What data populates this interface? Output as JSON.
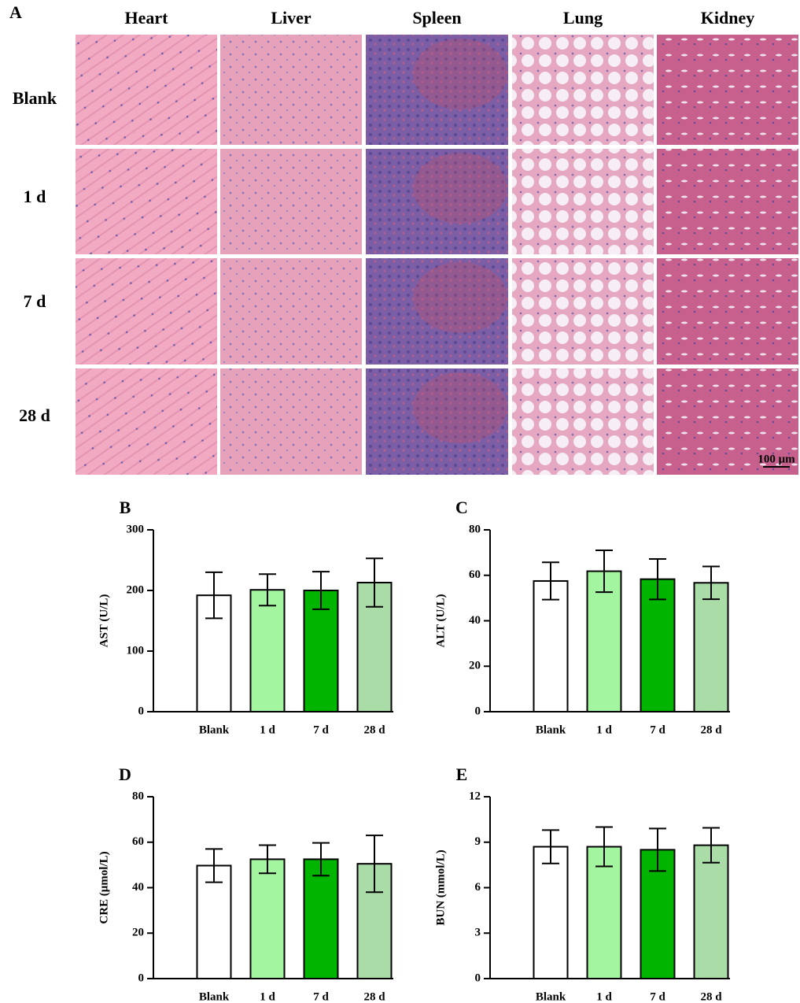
{
  "panel_a": {
    "label": "A",
    "columns": [
      "Heart",
      "Liver",
      "Spleen",
      "Lung",
      "Kidney"
    ],
    "rows": [
      "Blank",
      "1 d",
      "7 d",
      "28 d"
    ],
    "scale_bar": "100 μm"
  },
  "chart_data": [
    {
      "type": "bar",
      "label": "B",
      "ylabel": "AST (U/L)",
      "categories": [
        "Blank",
        "1 d",
        "7 d",
        "28 d"
      ],
      "values": [
        192,
        201,
        200,
        213
      ],
      "errors": [
        38,
        26,
        31,
        40
      ],
      "colors": [
        "#ffffff",
        "#a3f5a0",
        "#00b400",
        "#aadca8"
      ],
      "ylim": [
        0,
        300
      ],
      "yticks": [
        0,
        100,
        200,
        300
      ]
    },
    {
      "type": "bar",
      "label": "C",
      "ylabel": "ALT (U/L)",
      "categories": [
        "Blank",
        "1 d",
        "7 d",
        "28 d"
      ],
      "values": [
        57.5,
        61.8,
        58.3,
        56.7
      ],
      "errors": [
        8.2,
        9.2,
        8.9,
        7.2
      ],
      "colors": [
        "#ffffff",
        "#a3f5a0",
        "#00b400",
        "#aadca8"
      ],
      "ylim": [
        0,
        80
      ],
      "yticks": [
        0,
        20,
        40,
        60,
        80
      ]
    },
    {
      "type": "bar",
      "label": "D",
      "ylabel": "CRE (μmol/L)",
      "categories": [
        "Blank",
        "1 d",
        "7 d",
        "28 d"
      ],
      "values": [
        49.7,
        52.5,
        52.5,
        50.5
      ],
      "errors": [
        7.3,
        6.2,
        7.2,
        12.5
      ],
      "colors": [
        "#ffffff",
        "#a3f5a0",
        "#00b400",
        "#aadca8"
      ],
      "ylim": [
        0,
        80
      ],
      "yticks": [
        0,
        20,
        40,
        60,
        80
      ]
    },
    {
      "type": "bar",
      "label": "E",
      "ylabel": "BUN (mmol/L)",
      "categories": [
        "Blank",
        "1 d",
        "7 d",
        "28 d"
      ],
      "values": [
        8.7,
        8.7,
        8.5,
        8.8
      ],
      "errors": [
        1.1,
        1.3,
        1.4,
        1.15
      ],
      "colors": [
        "#ffffff",
        "#a3f5a0",
        "#00b400",
        "#aadca8"
      ],
      "ylim": [
        0,
        12
      ],
      "yticks": [
        0,
        3,
        6,
        9,
        12
      ]
    }
  ]
}
